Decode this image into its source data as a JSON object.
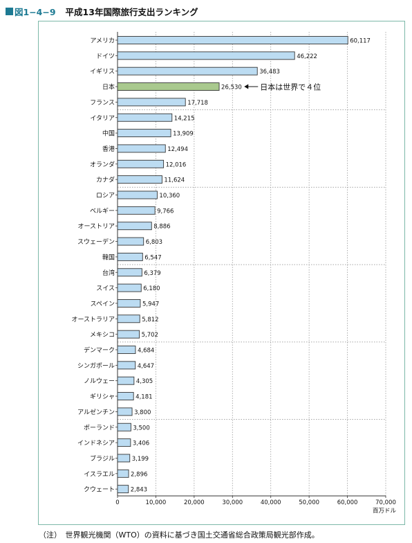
{
  "figure": {
    "label": "図1−4−9",
    "title": "平成13年国際旅行支出ランキング"
  },
  "note": "（注）　世界観光機関（WTO）の資料に基づき国土交通省総合政策局観光部作成。",
  "chart_data": {
    "type": "bar",
    "orientation": "horizontal",
    "title": "",
    "categories": [
      "アメリカ",
      "ドイツ",
      "イギリス",
      "日本",
      "フランス",
      "イタリア",
      "中国",
      "香港",
      "オランダ",
      "カナダ",
      "ロシア",
      "ベルギー",
      "オーストリア",
      "スウェーデン",
      "韓国",
      "台湾",
      "スイス",
      "スペイン",
      "オーストラリア",
      "メキシコ",
      "デンマーク",
      "シンガポール",
      "ノルウェー",
      "ギリシャ",
      "アルゼンチン",
      "ポーランド",
      "インドネシア",
      "ブラジル",
      "イスラエル",
      "クウェート"
    ],
    "values": [
      60117,
      46222,
      36483,
      26530,
      17718,
      14215,
      13909,
      12494,
      12016,
      11624,
      10360,
      9766,
      8886,
      6803,
      6547,
      6379,
      6180,
      5947,
      5812,
      5702,
      4684,
      4647,
      4305,
      4181,
      3800,
      3500,
      3406,
      3199,
      2896,
      2843
    ],
    "value_labels": [
      "60,117",
      "46,222",
      "36,483",
      "26,530",
      "17,718",
      "14,215",
      "13,909",
      "12,494",
      "12,016",
      "11,624",
      "10,360",
      "9,766",
      "8,886",
      "6,803",
      "6,547",
      "6,379",
      "6,180",
      "5,947",
      "5,812",
      "5,702",
      "4,684",
      "4,647",
      "4,305",
      "4,181",
      "3,800",
      "3,500",
      "3,406",
      "3,199",
      "2,896",
      "2,843"
    ],
    "xlim": [
      0,
      70000
    ],
    "xticks": [
      0,
      10000,
      20000,
      30000,
      40000,
      50000,
      60000,
      70000
    ],
    "xtick_labels": [
      "0",
      "10,000",
      "20,000",
      "30,000",
      "40,000",
      "50,000",
      "60,000",
      "70,000"
    ],
    "xlabel": "百万ドル",
    "ylabel": "",
    "grid": "vertical dotted lines; horizontal dotted separators every 5 categories",
    "highlight_category": "日本",
    "annotation": {
      "category": "日本",
      "text": "日本は世界で４位",
      "arrow": "left"
    },
    "colors": {
      "bar": "#bcdcf2",
      "highlight": "#a9c98e",
      "bar_stroke": "#333333",
      "frame": "#7cb8a8"
    }
  }
}
